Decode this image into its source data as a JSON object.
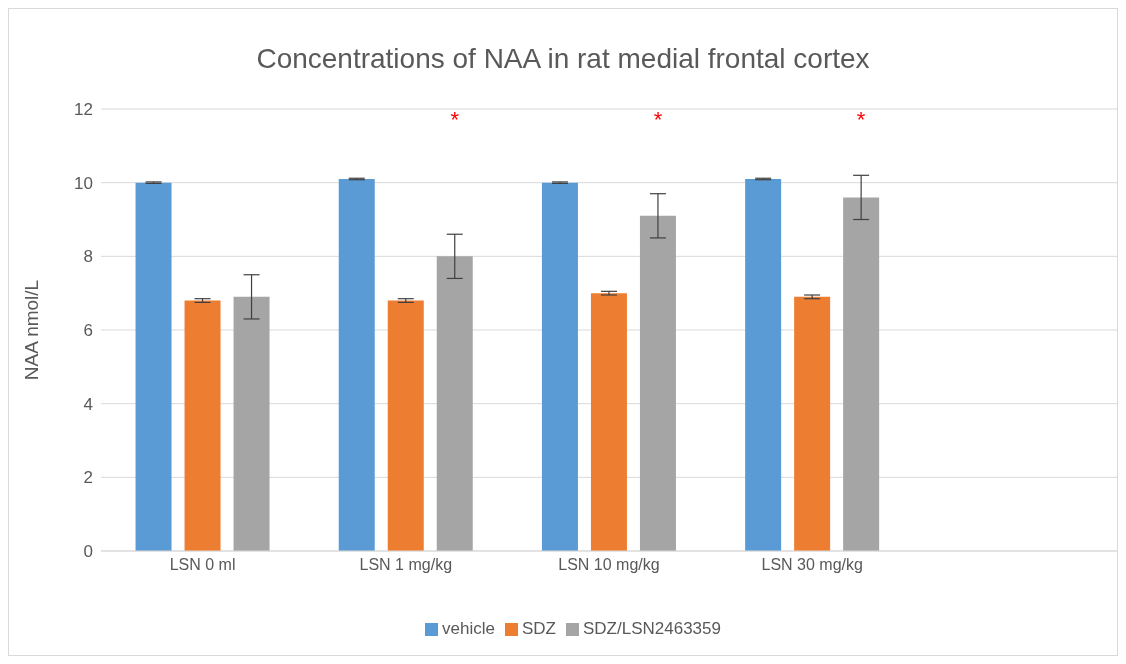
{
  "chart_data": {
    "type": "bar",
    "title": "Concentrations of NAA in rat medial frontal cortex",
    "ylabel": "NAA nmol/L",
    "categories": [
      "LSN 0 ml",
      "LSN 1 mg/kg",
      "LSN 10 mg/kg",
      "LSN 30 mg/kg",
      null
    ],
    "series": [
      {
        "name": "vehicle",
        "color": "#5b9bd5",
        "values": [
          10,
          10.1,
          10,
          10.1,
          null
        ],
        "errors": [
          0.02,
          0.02,
          0.02,
          0.02,
          null
        ]
      },
      {
        "name": "SDZ",
        "color": "#ed7d31",
        "values": [
          6.8,
          6.8,
          7.0,
          6.9,
          null
        ],
        "errors": [
          0.05,
          0.05,
          0.05,
          0.05,
          null
        ]
      },
      {
        "name": "SDZ/LSN2463359",
        "color": "#a5a5a5",
        "values": [
          6.9,
          8.0,
          9.1,
          9.6,
          null
        ],
        "errors": [
          0.6,
          0.6,
          0.6,
          0.6,
          null
        ]
      }
    ],
    "annotations": [
      "*",
      "*",
      "*"
    ],
    "ylim": [
      0,
      12
    ],
    "yticks": [
      0,
      2,
      4,
      6,
      8,
      10,
      12
    ],
    "grid": "y",
    "legend": "bottom"
  }
}
